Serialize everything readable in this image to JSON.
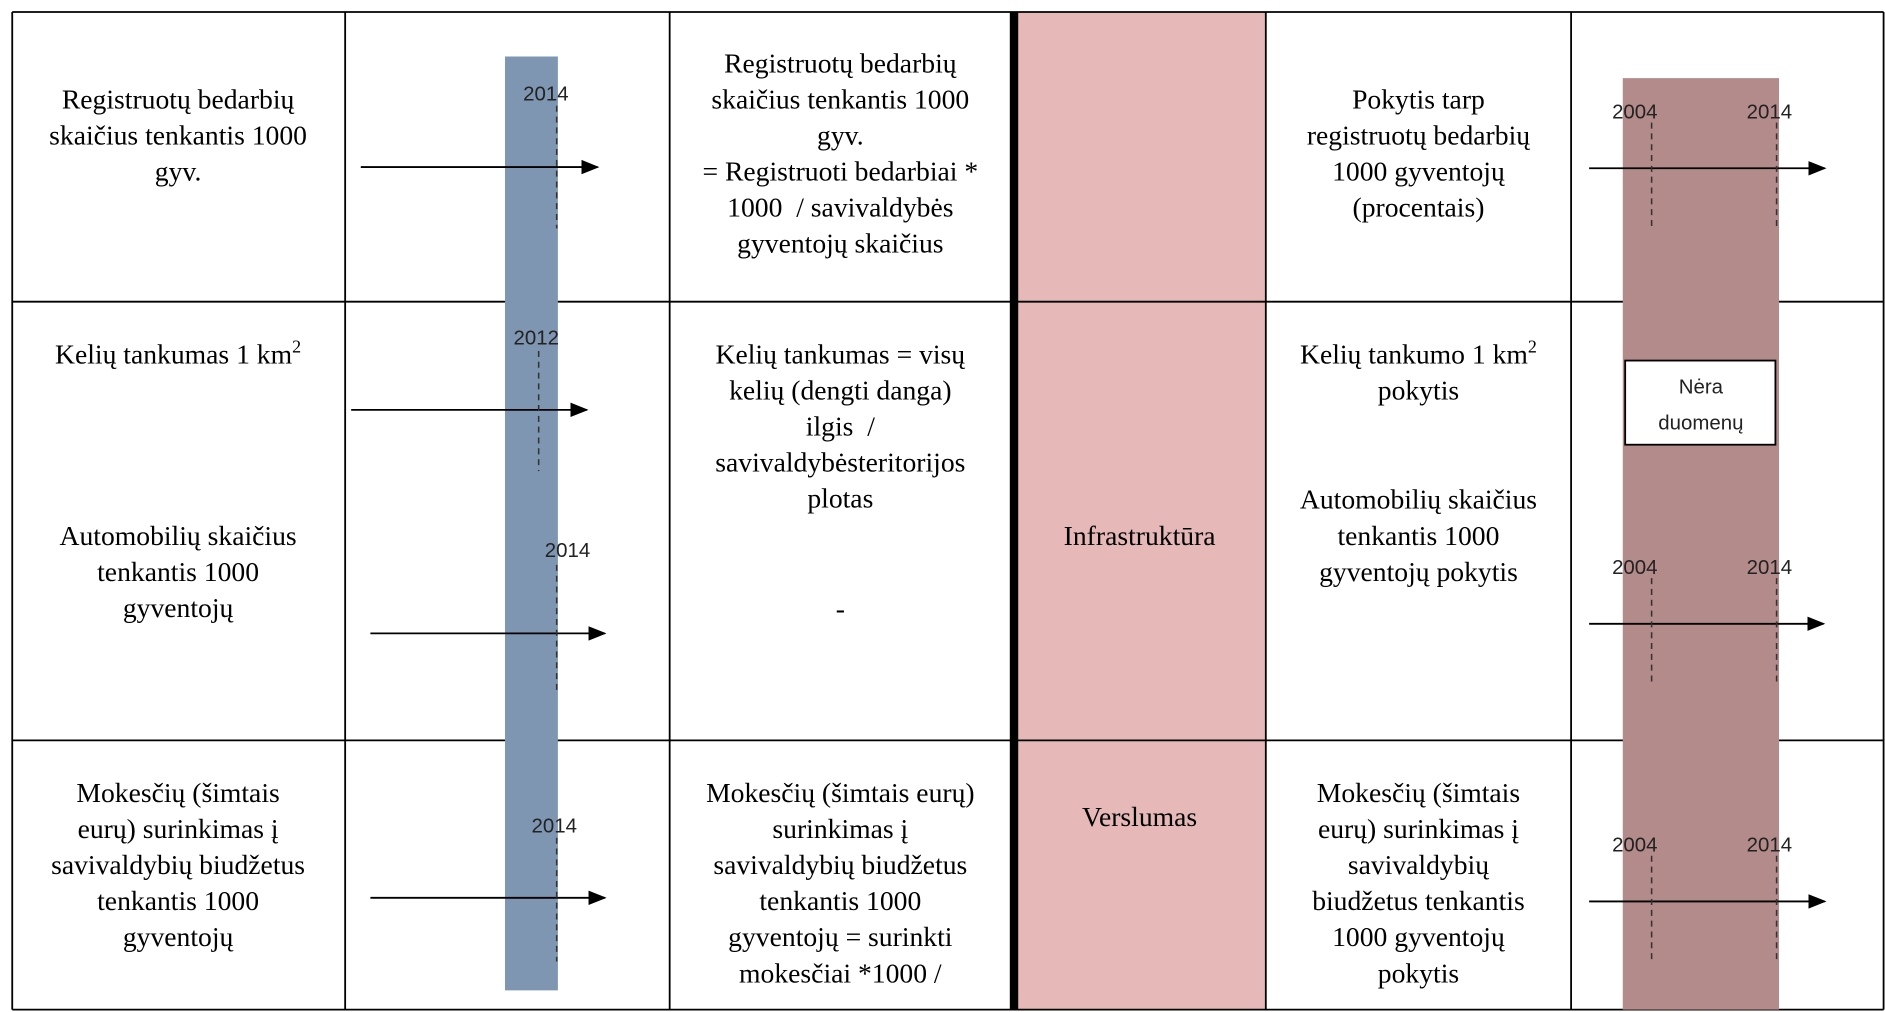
{
  "rows": [
    {
      "indicators": [
        {
          "lines": [
            "Registruotų bedarbių",
            "skaičius tenkantis 1000",
            "gyv."
          ]
        }
      ],
      "years": [
        "2014"
      ],
      "formula": [
        {
          "lines": [
            "Registruotų bedarbių",
            "skaičius tenkantis 1000",
            "gyv.",
            "= Registruoti bedarbiai *",
            "1000  / savivaldybės",
            "gyventojų skaičius"
          ]
        }
      ],
      "change": [
        {
          "lines": [
            "Pokytis tarp",
            "registruotų bedarbių",
            "1000 gyventojų",
            "(procentais)"
          ]
        }
      ],
      "change_years": [
        "2004",
        "2014"
      ]
    },
    {
      "indicators": [
        {
          "lines": [
            "Kelių tankumas 1 km"
          ],
          "sup": "2"
        },
        {
          "lines": [
            "Automobilių skaičius",
            "tenkantis 1000",
            "gyventojų"
          ]
        }
      ],
      "years": [
        "2012",
        "2014"
      ],
      "formula": [
        {
          "lines": [
            "Kelių tankumas = visų",
            "kelių (dengti danga)",
            "ilgis  /",
            "savivaldybėsteritorijos",
            "plotas"
          ]
        },
        {
          "lines": [
            "-"
          ]
        }
      ],
      "category": "Infrastruktūra",
      "change": [
        {
          "lines": [
            "Kelių tankumo 1 km",
            "pokytis"
          ],
          "sup": "2"
        },
        {
          "lines": [
            "Automobilių skaičius",
            "tenkantis 1000",
            "gyventojų pokytis"
          ]
        }
      ],
      "no_data": [
        "Nėra",
        "duomenų"
      ],
      "change_years": [
        "2004",
        "2014"
      ]
    },
    {
      "indicators": [
        {
          "lines": [
            "Mokesčių (šimtais",
            "eurų) surinkimas į",
            "savivaldybių biudžetus",
            "tenkantis 1000",
            "gyventojų"
          ]
        }
      ],
      "years": [
        "2014"
      ],
      "formula": [
        {
          "lines": [
            "Mokesčių (šimtais eurų)",
            "surinkimas į",
            "savivaldybių biudžetus",
            "tenkantis 1000",
            "gyventojų = surinkti",
            "mokesčiai *1000 /"
          ]
        }
      ],
      "category": "Verslumas",
      "change": [
        {
          "lines": [
            "Mokesčių (šimtais",
            "eurų) surinkimas į",
            "savivaldybių",
            "biudžetus tenkantis",
            "1000 gyventojų",
            "pokytis"
          ]
        }
      ],
      "change_years": [
        "2004",
        "2014"
      ]
    }
  ]
}
